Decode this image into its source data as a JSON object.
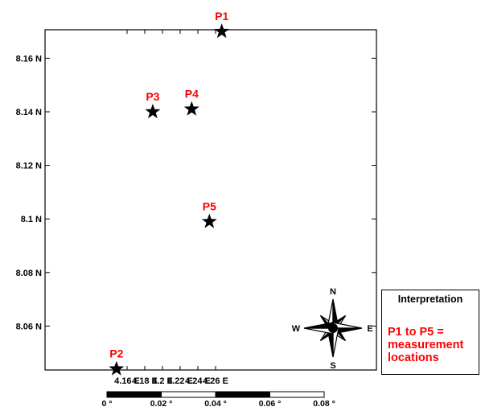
{
  "map": {
    "x_axis": {
      "ticks": [
        {
          "value": 4.16,
          "label": "4.16 E"
        },
        {
          "value": 4.18,
          "label": "4.18 E"
        },
        {
          "value": 4.2,
          "label": "4.2 E"
        },
        {
          "value": 4.22,
          "label": "4.22 E"
        },
        {
          "value": 4.24,
          "label": "4.24 E"
        },
        {
          "value": 4.26,
          "label": "4.26 E"
        }
      ]
    },
    "y_axis": {
      "ticks": [
        {
          "value": 8.06,
          "label": "8.06 N"
        },
        {
          "value": 8.08,
          "label": "8.08 N"
        },
        {
          "value": 8.1,
          "label": "8.1 N"
        },
        {
          "value": 8.12,
          "label": "8.12 N"
        },
        {
          "value": 8.14,
          "label": "8.14 N"
        },
        {
          "value": 8.16,
          "label": "8.16 N"
        }
      ]
    },
    "points": [
      {
        "label": "P1",
        "lon": 4.267,
        "lat": 8.17
      },
      {
        "label": "P2",
        "lon": 4.148,
        "lat": 8.044
      },
      {
        "label": "P3",
        "lon": 4.189,
        "lat": 8.14
      },
      {
        "label": "P4",
        "lon": 4.233,
        "lat": 8.141
      },
      {
        "label": "P5",
        "lon": 4.253,
        "lat": 8.099
      }
    ],
    "marker_color": "#000000",
    "label_color": "#ff0000",
    "compass": {
      "n": "N",
      "s": "S",
      "e": "E",
      "w": "W"
    },
    "scale_bar": {
      "ticks": [
        "0 °",
        "0.02 °",
        "0.04 °",
        "0.06 °",
        "0.08 °"
      ]
    }
  },
  "legend": {
    "title": "Interpretation",
    "body": "P1 to P5 =\nmeasurement\nlocations"
  }
}
